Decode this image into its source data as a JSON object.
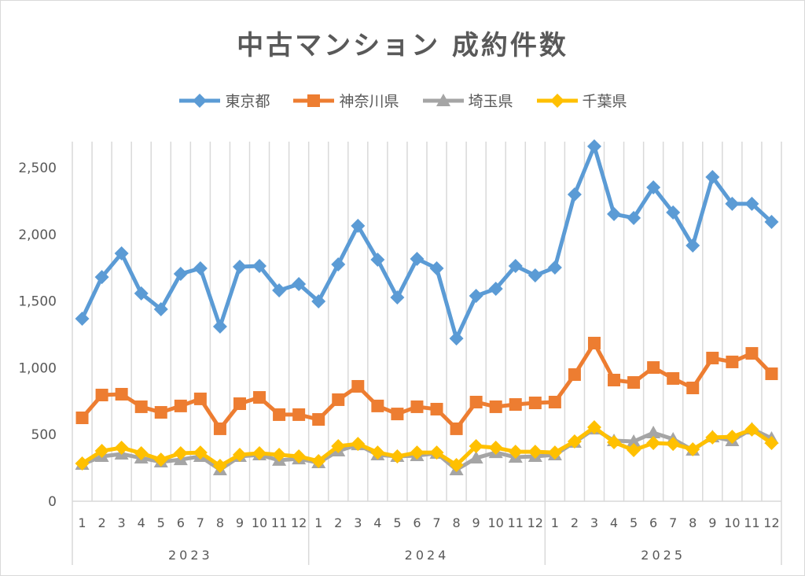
{
  "chart_data": {
    "type": "line",
    "title": "中古マンション 成約件数",
    "xlabel": "",
    "ylabel": "",
    "ylim": [
      0,
      2500
    ],
    "yticks": [
      0,
      500,
      1000,
      1500,
      2000,
      2500
    ],
    "ytick_labels": [
      "0",
      "500",
      "1,000",
      "1,500",
      "2,000",
      "2,500"
    ],
    "grid": "vertical",
    "legend_position": "top",
    "years": [
      "2023",
      "2024",
      "2025"
    ],
    "months": [
      "1",
      "2",
      "3",
      "4",
      "5",
      "6",
      "7",
      "8",
      "9",
      "10",
      "11",
      "12"
    ],
    "x": [
      "2023-1",
      "2023-2",
      "2023-3",
      "2023-4",
      "2023-5",
      "2023-6",
      "2023-7",
      "2023-8",
      "2023-9",
      "2023-10",
      "2023-11",
      "2023-12",
      "2024-1",
      "2024-2",
      "2024-3",
      "2024-4",
      "2024-5",
      "2024-6",
      "2024-7",
      "2024-8",
      "2024-9",
      "2024-10",
      "2024-11",
      "2024-12",
      "2025-1",
      "2025-2",
      "2025-3",
      "2025-4",
      "2025-5",
      "2025-6",
      "2025-7",
      "2025-8",
      "2025-9",
      "2025-10",
      "2025-11",
      "2025-12"
    ],
    "series": [
      {
        "name": "東京都",
        "color": "#5b9bd5",
        "marker": "diamond",
        "values": [
          1368,
          1680,
          1857,
          1557,
          1439,
          1704,
          1745,
          1309,
          1757,
          1763,
          1580,
          1627,
          1498,
          1775,
          2064,
          1810,
          1527,
          1816,
          1745,
          1220,
          1539,
          1592,
          1763,
          1692,
          1751,
          2299,
          2659,
          2152,
          2123,
          2352,
          2164,
          1916,
          2429,
          2229,
          2229,
          2093
        ]
      },
      {
        "name": "神奈川県",
        "color": "#ed7d31",
        "marker": "square",
        "values": [
          625,
          796,
          802,
          708,
          666,
          714,
          767,
          543,
          731,
          778,
          649,
          649,
          613,
          761,
          861,
          714,
          654,
          708,
          690,
          543,
          743,
          708,
          725,
          737,
          743,
          949,
          1185,
          908,
          890,
          1002,
          920,
          849,
          1073,
          1044,
          1108,
          955
        ]
      },
      {
        "name": "埼玉県",
        "color": "#a5a5a5",
        "marker": "triangle",
        "values": [
          277,
          336,
          354,
          324,
          295,
          312,
          336,
          236,
          336,
          348,
          307,
          318,
          289,
          377,
          424,
          348,
          336,
          342,
          360,
          236,
          324,
          365,
          330,
          336,
          348,
          442,
          542,
          454,
          448,
          513,
          466,
          383,
          483,
          454,
          542,
          472
        ]
      },
      {
        "name": "千葉県",
        "color": "#ffc000",
        "marker": "diamond",
        "values": [
          283,
          377,
          401,
          360,
          312,
          360,
          365,
          265,
          348,
          360,
          348,
          336,
          301,
          413,
          430,
          365,
          336,
          365,
          365,
          271,
          413,
          401,
          371,
          371,
          365,
          448,
          554,
          442,
          383,
          436,
          430,
          389,
          478,
          483,
          537,
          436
        ]
      }
    ]
  }
}
